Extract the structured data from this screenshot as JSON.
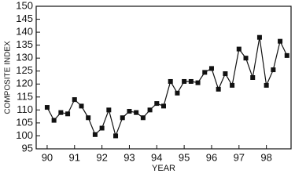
{
  "chart_data": {
    "type": "line",
    "xlabel": "YEAR",
    "ylabel": "COMPOSITE INDEX",
    "x": [
      90,
      90.25,
      90.5,
      90.75,
      91,
      91.25,
      91.5,
      91.75,
      92,
      92.25,
      92.5,
      92.75,
      93,
      93.25,
      93.5,
      93.75,
      94,
      94.25,
      94.5,
      94.75,
      95,
      95.25,
      95.5,
      95.75,
      96,
      96.25,
      96.5,
      96.75,
      97,
      97.25,
      97.5,
      97.75,
      98,
      98.25,
      98.5,
      98.75
    ],
    "series": [
      {
        "color": "#111111",
        "values": [
          111,
          106,
          109,
          108.5,
          114,
          111.5,
          107,
          100.5,
          103,
          110,
          100,
          107,
          109.5,
          109,
          107,
          110,
          112.5,
          111.5,
          121,
          116.5,
          121,
          121,
          120.5,
          124.5,
          126,
          118,
          124,
          119.5,
          133.5,
          130,
          122.5,
          138,
          119.5,
          125.5,
          136.5,
          131
        ]
      }
    ],
    "xlim": [
      89.6,
      98.9
    ],
    "xticks": [
      90,
      91,
      92,
      93,
      94,
      95,
      96,
      97,
      98
    ],
    "ylim": [
      95,
      150
    ],
    "yticks": [
      95,
      100,
      105,
      110,
      115,
      120,
      125,
      130,
      135,
      140,
      145,
      150
    ]
  }
}
